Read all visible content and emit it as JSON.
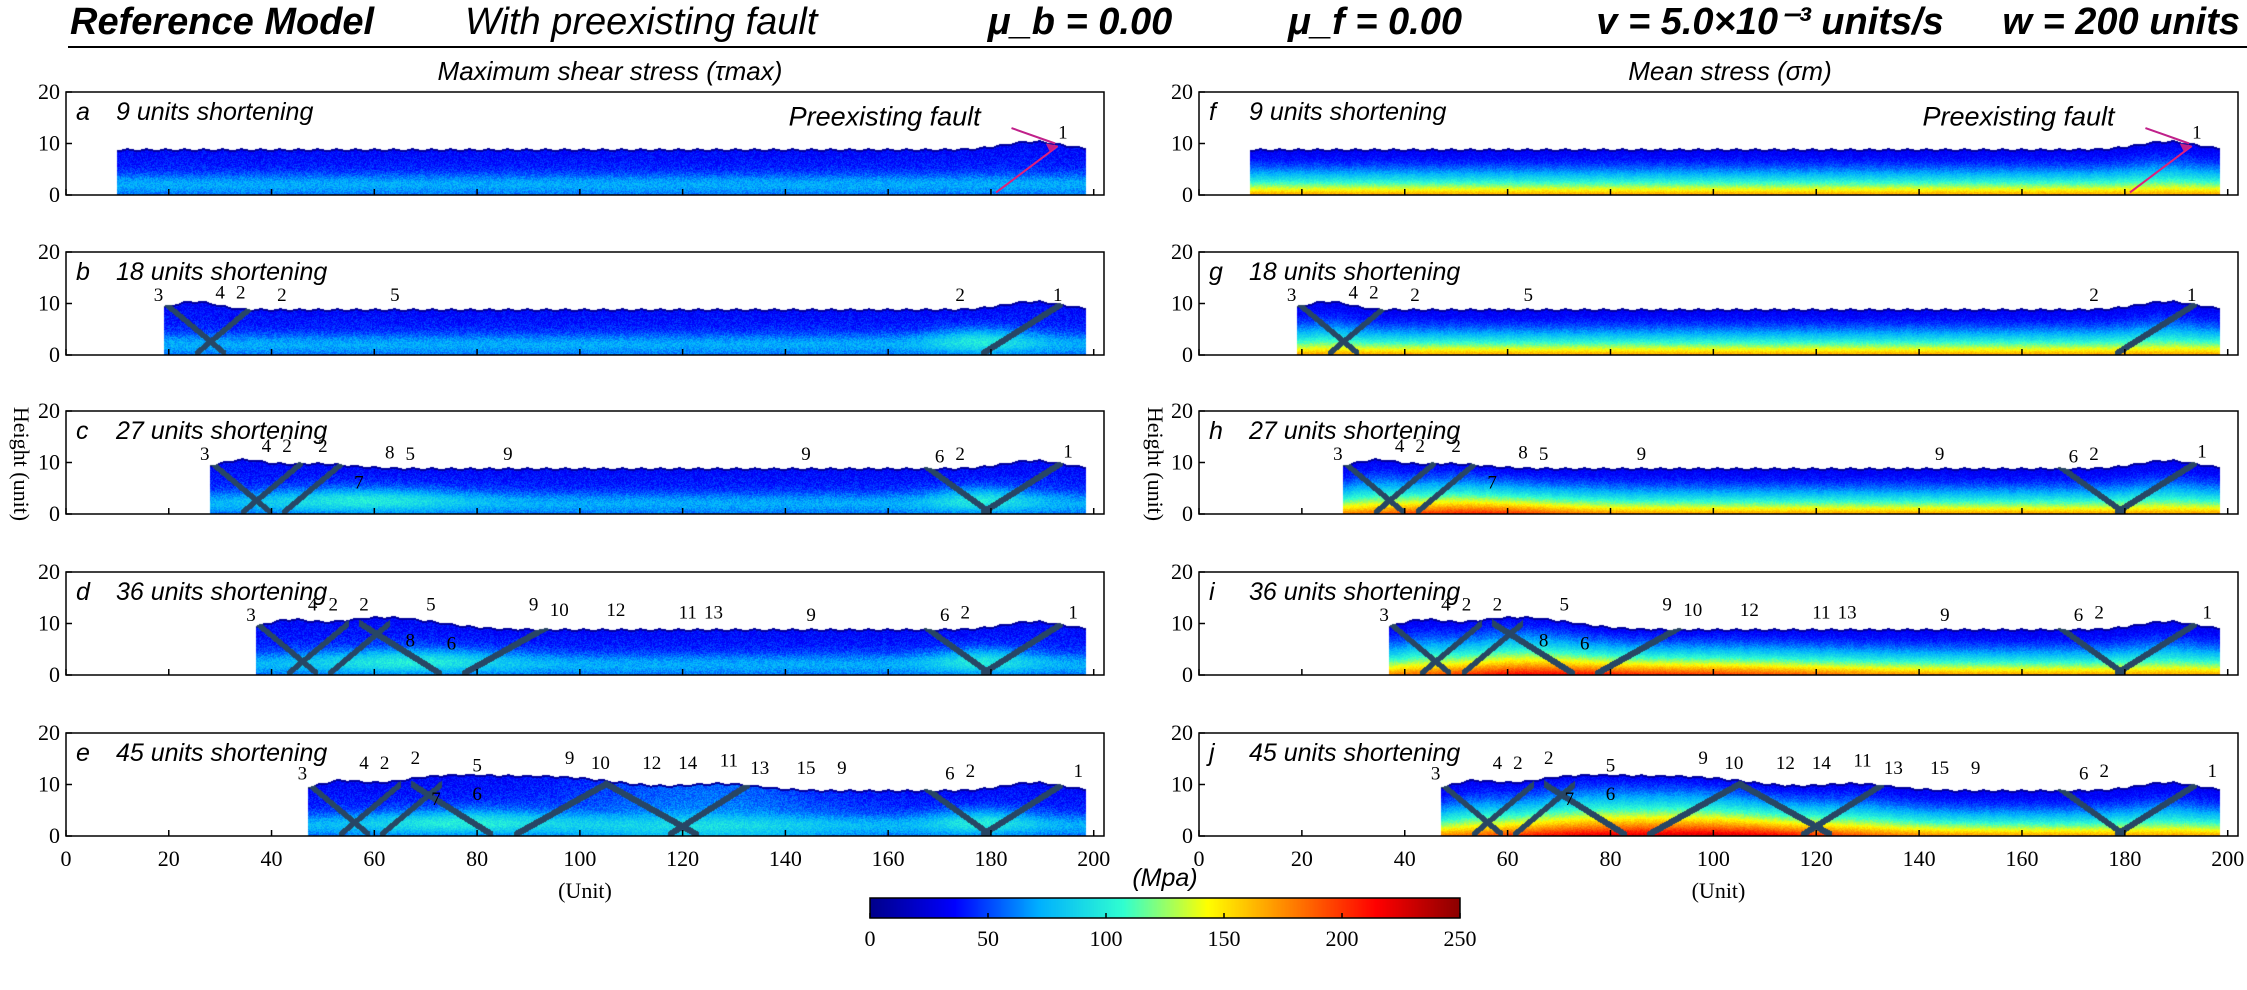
{
  "header": {
    "items": [
      {
        "text": "Reference  Model",
        "x": 70,
        "anchor": "start",
        "weight": "bold"
      },
      {
        "text": "With preexisting fault",
        "x": 465,
        "anchor": "start",
        "weight": "normal"
      },
      {
        "text": "μ_b = 0.00",
        "x": 1080,
        "anchor": "middle",
        "weight": "bold"
      },
      {
        "text": "μ_f = 0.00",
        "x": 1375,
        "anchor": "middle",
        "weight": "bold"
      },
      {
        "text": "v = 5.0×10⁻³ units/s",
        "x": 1770,
        "anchor": "middle",
        "weight": "bold"
      },
      {
        "text": "w = 200 units",
        "x": 2240,
        "anchor": "end",
        "weight": "bold"
      }
    ]
  },
  "column_titles": [
    "Maximum shear stress (τmax)",
    "Mean stress (σm)"
  ],
  "y_axis": {
    "label": "Height (unit)",
    "ticks": [
      0,
      10,
      20
    ]
  },
  "x_axis": {
    "label": "(Unit)",
    "ticks": [
      0,
      20,
      40,
      60,
      80,
      100,
      120,
      140,
      160,
      180,
      200
    ]
  },
  "panels_left": [
    {
      "letter": "a",
      "caption": "9 units shortening",
      "left_end": 10
    },
    {
      "letter": "b",
      "caption": "18 units shortening",
      "left_end": 19
    },
    {
      "letter": "c",
      "caption": "27 units shortening",
      "left_end": 28
    },
    {
      "letter": "d",
      "caption": "36 units shortening",
      "left_end": 37
    },
    {
      "letter": "e",
      "caption": "45 units shortening",
      "left_end": 47
    }
  ],
  "panels_right": [
    {
      "letter": "f",
      "caption": "9 units shortening",
      "left_end": 10
    },
    {
      "letter": "g",
      "caption": "18 units shortening",
      "left_end": 19
    },
    {
      "letter": "h",
      "caption": "27 units shortening",
      "left_end": 28
    },
    {
      "letter": "i",
      "caption": "36 units shortening",
      "left_end": 37
    },
    {
      "letter": "j",
      "caption": "45 units shortening",
      "left_end": 47
    }
  ],
  "fault_labels": [
    [
      {
        "t": "1",
        "x": 194,
        "y": 11
      }
    ],
    [
      {
        "t": "3",
        "x": 18,
        "y": 10.5
      },
      {
        "t": "4",
        "x": 30,
        "y": 11
      },
      {
        "t": "2",
        "x": 34,
        "y": 11
      },
      {
        "t": "2",
        "x": 42,
        "y": 10.5
      },
      {
        "t": "5",
        "x": 64,
        "y": 10.5
      },
      {
        "t": "2",
        "x": 174,
        "y": 10.5
      },
      {
        "t": "1",
        "x": 193,
        "y": 10.5
      }
    ],
    [
      {
        "t": "3",
        "x": 27,
        "y": 10.5
      },
      {
        "t": "4",
        "x": 39,
        "y": 12
      },
      {
        "t": "2",
        "x": 43,
        "y": 12
      },
      {
        "t": "2",
        "x": 50,
        "y": 12
      },
      {
        "t": "8",
        "x": 63,
        "y": 10.8
      },
      {
        "t": "5",
        "x": 67,
        "y": 10.5
      },
      {
        "t": "9",
        "x": 86,
        "y": 10.5
      },
      {
        "t": "9",
        "x": 144,
        "y": 10.5
      },
      {
        "t": "6",
        "x": 170,
        "y": 10
      },
      {
        "t": "2",
        "x": 174,
        "y": 10.5
      },
      {
        "t": "1",
        "x": 195,
        "y": 11
      }
    ],
    [
      {
        "t": "3",
        "x": 36,
        "y": 10.5
      },
      {
        "t": "4",
        "x": 48,
        "y": 12.5
      },
      {
        "t": "2",
        "x": 52,
        "y": 12.5
      },
      {
        "t": "2",
        "x": 58,
        "y": 12.5
      },
      {
        "t": "5",
        "x": 71,
        "y": 12.5
      },
      {
        "t": "9",
        "x": 91,
        "y": 12.5
      },
      {
        "t": "10",
        "x": 96,
        "y": 11.5
      },
      {
        "t": "12",
        "x": 107,
        "y": 11.5
      },
      {
        "t": "11",
        "x": 121,
        "y": 11
      },
      {
        "t": "13",
        "x": 126,
        "y": 11
      },
      {
        "t": "9",
        "x": 145,
        "y": 10.5
      },
      {
        "t": "6",
        "x": 171,
        "y": 10.5
      },
      {
        "t": "2",
        "x": 175,
        "y": 11
      },
      {
        "t": "1",
        "x": 196,
        "y": 11
      }
    ],
    [
      {
        "t": "3",
        "x": 46,
        "y": 11
      },
      {
        "t": "4",
        "x": 58,
        "y": 13
      },
      {
        "t": "2",
        "x": 62,
        "y": 13
      },
      {
        "t": "2",
        "x": 68,
        "y": 14
      },
      {
        "t": "5",
        "x": 80,
        "y": 12.5
      },
      {
        "t": "9",
        "x": 98,
        "y": 14
      },
      {
        "t": "10",
        "x": 104,
        "y": 13
      },
      {
        "t": "12",
        "x": 114,
        "y": 13
      },
      {
        "t": "14",
        "x": 121,
        "y": 13
      },
      {
        "t": "11",
        "x": 129,
        "y": 13.5
      },
      {
        "t": "13",
        "x": 135,
        "y": 12
      },
      {
        "t": "15",
        "x": 144,
        "y": 12
      },
      {
        "t": "9",
        "x": 151,
        "y": 12
      },
      {
        "t": "6",
        "x": 172,
        "y": 11
      },
      {
        "t": "2",
        "x": 176,
        "y": 11.5
      },
      {
        "t": "1",
        "x": 197,
        "y": 11.5
      }
    ]
  ],
  "inner_labels": [
    [],
    [],
    [
      {
        "t": "7",
        "x": 57,
        "y": 5
      }
    ],
    [
      {
        "t": "8",
        "x": 67,
        "y": 5.5
      },
      {
        "t": "6",
        "x": 75,
        "y": 5
      }
    ],
    [
      {
        "t": "7",
        "x": 72,
        "y": 6
      },
      {
        "t": "6",
        "x": 80,
        "y": 7
      }
    ]
  ],
  "preexisting_fault_label": "Preexisting fault",
  "colorbar": {
    "unit": "(Mpa)",
    "ticks": [
      0,
      50,
      100,
      150,
      200,
      250
    ],
    "stops": [
      "#00008b",
      "#0000ff",
      "#00b0ff",
      "#30ffd0",
      "#ffff00",
      "#ff7f00",
      "#ff0000",
      "#8b0000"
    ]
  }
}
